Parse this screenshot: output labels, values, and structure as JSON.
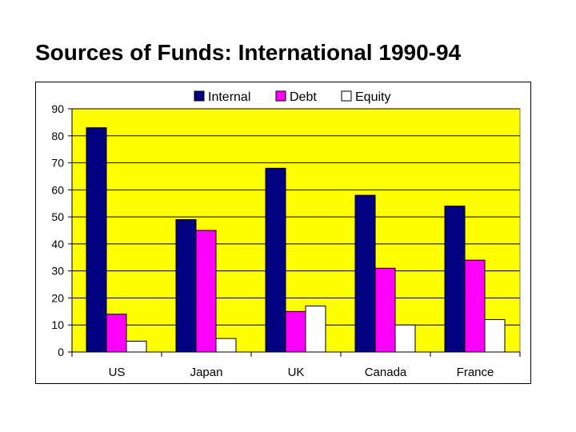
{
  "slide": {
    "title": "Sources of Funds: International 1990-94"
  },
  "chart_data": {
    "type": "bar",
    "title": "",
    "xlabel": "",
    "ylabel": "",
    "categories": [
      "US",
      "Japan",
      "UK",
      "Canada",
      "France"
    ],
    "series": [
      {
        "name": "Internal",
        "values": [
          83,
          49,
          68,
          58,
          54
        ],
        "color": "#000080"
      },
      {
        "name": "Debt",
        "values": [
          14,
          45,
          15,
          31,
          34
        ],
        "color": "#ff00ff"
      },
      {
        "name": "Equity",
        "values": [
          4,
          5,
          17,
          10,
          12
        ],
        "color": "#ffffff"
      }
    ],
    "ylim": [
      0,
      90
    ],
    "yticks": [
      0,
      10,
      20,
      30,
      40,
      50,
      60,
      70,
      80,
      90
    ],
    "grid": true,
    "legend": "top",
    "plot_background": "#ffff00"
  }
}
